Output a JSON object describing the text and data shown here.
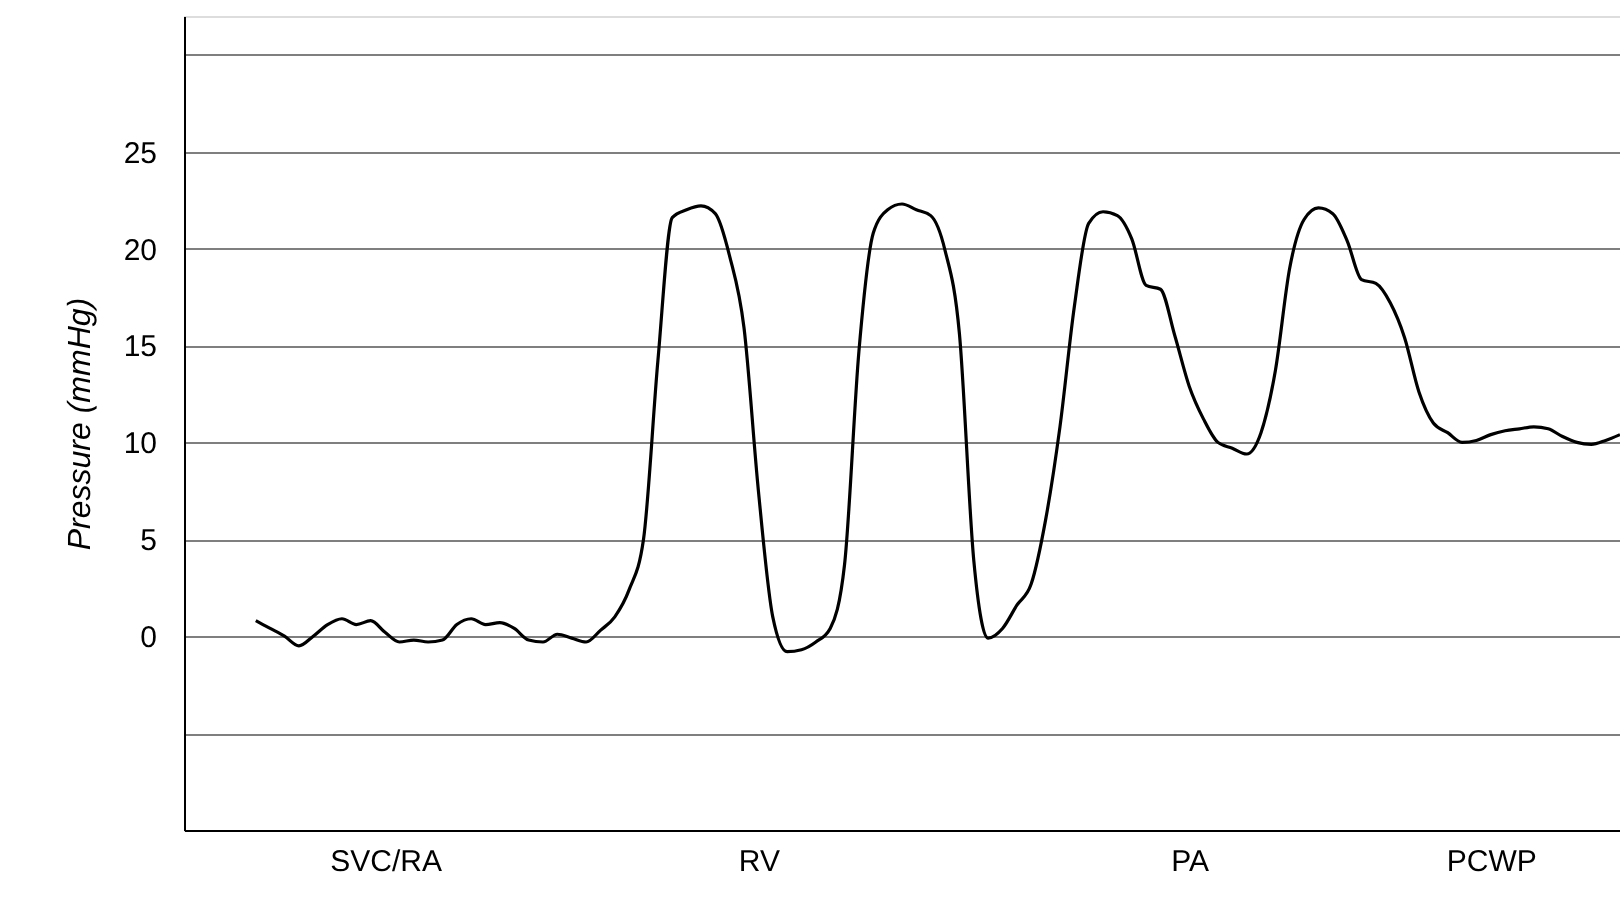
{
  "chart_data": {
    "type": "line",
    "ylabel": "Pressure (mmHg)",
    "categories": [
      null,
      null,
      null,
      null,
      null,
      null,
      null,
      null,
      null,
      null,
      null,
      null,
      null,
      null,
      "SVC/RA",
      null,
      null,
      null,
      null,
      null,
      null,
      null,
      null,
      null,
      null,
      null,
      null,
      null,
      null,
      null,
      null,
      null,
      null,
      null,
      null,
      null,
      null,
      null,
      null,
      null,
      "RV",
      null,
      null,
      null,
      null,
      null,
      null,
      null,
      null,
      null,
      null,
      null,
      null,
      null,
      null,
      null,
      null,
      null,
      null,
      null,
      null,
      null,
      null,
      null,
      null,
      null,
      null,
      null,
      null,
      null,
      "PA",
      null,
      null,
      null,
      null,
      null,
      null,
      null,
      null,
      null,
      null,
      null,
      null,
      null,
      null,
      null,
      null,
      null,
      null,
      null,
      null,
      "PCWP",
      null,
      null,
      null,
      null,
      null,
      null,
      null,
      null,
      null
    ],
    "series": [
      {
        "color": "#000000",
        "values": [
          null,
          null,
          null,
          null,
          null,
          0.8,
          0.4,
          0,
          -0.5,
          0,
          0.6,
          0.9,
          0.6,
          0.8,
          0.2,
          -0.3,
          -0.2,
          -0.3,
          -0.2,
          0.6,
          0.9,
          0.6,
          0.7,
          0.4,
          -0.2,
          -0.3,
          0.1,
          -0.1,
          -0.3,
          0.3,
          1.0,
          2.4,
          5,
          14.2,
          21.6,
          22.0,
          22.2,
          21.8,
          19.6,
          15.9,
          7.5,
          1.0,
          -0.8,
          -0.7,
          -0.3,
          0.4,
          3.7,
          14.7,
          20.8,
          22.0,
          22.3,
          22.0,
          21.7,
          19.9,
          15.6,
          3.9,
          -0.1,
          0.4,
          1.6,
          2.7,
          6.0,
          10.8,
          17.0,
          21.3,
          21.9,
          21.7,
          20.5,
          18.1,
          17.9,
          15.5,
          12.9,
          11.2,
          10.0,
          9.7,
          9.4,
          10.5,
          13.7,
          19.0,
          21.5,
          22.1,
          21.8,
          20.4,
          18.4,
          18.2,
          17.2,
          15.4,
          12.6,
          11.0,
          10.5,
          10.0,
          10.1,
          10.4,
          10.6,
          10.7,
          10.8,
          10.7,
          10.3,
          10.0,
          9.9,
          10.1,
          10.4
        ]
      }
    ],
    "ylim": [
      -10,
      32
    ],
    "yticks": [
      {
        "value": -10,
        "label": null
      },
      {
        "value": -5,
        "label": null
      },
      0,
      5,
      10,
      15,
      20,
      25,
      {
        "value": 30,
        "label": null
      }
    ],
    "grid": "y",
    "line_style": "solid",
    "marker": "none"
  }
}
